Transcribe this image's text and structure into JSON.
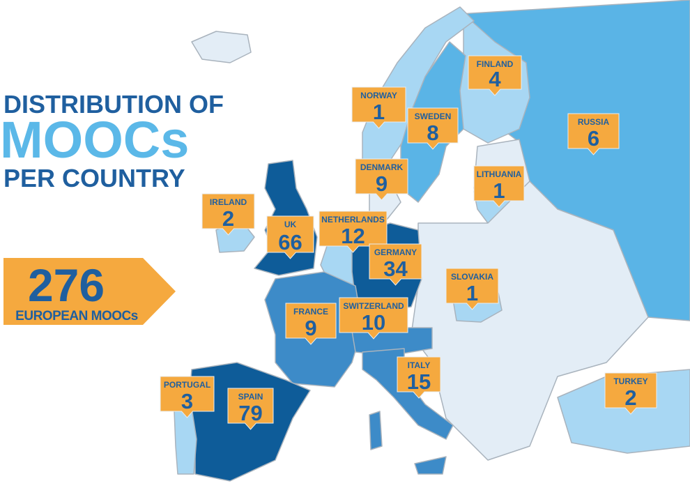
{
  "title": {
    "line1": "DISTRIBUTION OF",
    "line2": "MOOCs",
    "line3": "PER COUNTRY"
  },
  "total": {
    "value": 276,
    "label": "EUROPEAN MOOCs"
  },
  "countries": [
    {
      "name": "NORWAY",
      "count": 1
    },
    {
      "name": "FINLAND",
      "count": 4
    },
    {
      "name": "SWEDEN",
      "count": 8
    },
    {
      "name": "RUSSIA",
      "count": 6
    },
    {
      "name": "DENMARK",
      "count": 9
    },
    {
      "name": "LITHUANIA",
      "count": 1
    },
    {
      "name": "IRELAND",
      "count": 2
    },
    {
      "name": "NETHERLANDS",
      "count": 12
    },
    {
      "name": "UK",
      "count": 66
    },
    {
      "name": "GERMANY",
      "count": 34
    },
    {
      "name": "SLOVAKIA",
      "count": 1
    },
    {
      "name": "FRANCE",
      "count": 9
    },
    {
      "name": "SWITZERLAND",
      "count": 10
    },
    {
      "name": "ITALY",
      "count": 15
    },
    {
      "name": "PORTUGAL",
      "count": 3
    },
    {
      "name": "SPAIN",
      "count": 79
    },
    {
      "name": "TURKEY",
      "count": 2
    }
  ]
}
